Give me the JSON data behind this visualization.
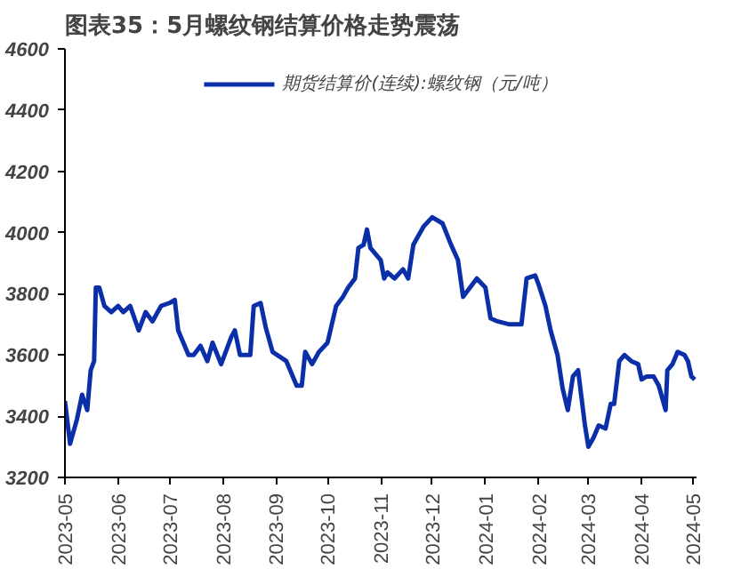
{
  "chart_data": {
    "type": "line",
    "title": "图表35：5月螺纹钢结算价格走势震荡",
    "series": [
      {
        "name": "期货结算价(连续):螺纹钢（元/吨）",
        "color": "#0a2fa8",
        "x": [
          "2023-05-01",
          "2023-05-04",
          "2023-05-08",
          "2023-05-11",
          "2023-05-14",
          "2023-05-16",
          "2023-05-18",
          "2023-05-19",
          "2023-05-21",
          "2023-05-24",
          "2023-05-28",
          "2023-06-01",
          "2023-06-04",
          "2023-06-08",
          "2023-06-13",
          "2023-06-17",
          "2023-06-21",
          "2023-06-26",
          "2023-07-01",
          "2023-07-04",
          "2023-07-06",
          "2023-07-12",
          "2023-07-15",
          "2023-07-19",
          "2023-07-23",
          "2023-07-26",
          "2023-07-31",
          "2023-08-06",
          "2023-08-08",
          "2023-08-11",
          "2023-08-17",
          "2023-08-19",
          "2023-08-23",
          "2023-08-26",
          "2023-08-30",
          "2023-09-07",
          "2023-09-13",
          "2023-09-16",
          "2023-09-18",
          "2023-09-22",
          "2023-09-26",
          "2023-10-01",
          "2023-10-06",
          "2023-10-10",
          "2023-10-13",
          "2023-10-17",
          "2023-10-19",
          "2023-10-22",
          "2023-10-24",
          "2023-10-26",
          "2023-11-01",
          "2023-11-03",
          "2023-11-05",
          "2023-11-09",
          "2023-11-14",
          "2023-11-17",
          "2023-11-20",
          "2023-11-26",
          "2023-12-01",
          "2023-12-07",
          "2023-12-12",
          "2023-12-16",
          "2023-12-19",
          "2023-12-23",
          "2023-12-27",
          "2024-01-01",
          "2024-01-04",
          "2024-01-08",
          "2024-01-15",
          "2024-01-22",
          "2024-01-25",
          "2024-01-30",
          "2024-02-01",
          "2024-02-05",
          "2024-02-08",
          "2024-02-12",
          "2024-02-15",
          "2024-02-18",
          "2024-02-21",
          "2024-02-24",
          "2024-02-28",
          "2024-03-01",
          "2024-03-04",
          "2024-03-07",
          "2024-03-11",
          "2024-03-14",
          "2024-03-16",
          "2024-03-19",
          "2024-03-22",
          "2024-03-26",
          "2024-03-30",
          "2024-04-01",
          "2024-04-04",
          "2024-04-08",
          "2024-04-11",
          "2024-04-15",
          "2024-04-16",
          "2024-04-19",
          "2024-04-22",
          "2024-04-26",
          "2024-04-28",
          "2024-04-30",
          "2024-05-02"
        ],
        "values": [
          3450,
          3310,
          3390,
          3470,
          3420,
          3550,
          3580,
          3820,
          3820,
          3760,
          3740,
          3760,
          3740,
          3760,
          3680,
          3740,
          3710,
          3760,
          3770,
          3780,
          3680,
          3600,
          3600,
          3630,
          3580,
          3640,
          3570,
          3660,
          3680,
          3600,
          3600,
          3760,
          3770,
          3690,
          3610,
          3580,
          3500,
          3500,
          3610,
          3570,
          3610,
          3640,
          3760,
          3790,
          3820,
          3850,
          3950,
          3960,
          4010,
          3950,
          3910,
          3850,
          3870,
          3850,
          3880,
          3850,
          3960,
          4020,
          4050,
          4030,
          3960,
          3910,
          3790,
          3820,
          3850,
          3820,
          3720,
          3710,
          3700,
          3700,
          3850,
          3860,
          3830,
          3760,
          3680,
          3600,
          3490,
          3420,
          3530,
          3550,
          3370,
          3300,
          3330,
          3370,
          3360,
          3440,
          3440,
          3580,
          3600,
          3580,
          3570,
          3520,
          3530,
          3530,
          3500,
          3420,
          3550,
          3570,
          3610,
          3600,
          3580,
          3530,
          3520
        ]
      }
    ],
    "xlim": [
      "2023-05-01",
      "2024-05-03"
    ],
    "xticks": [
      "2023-05",
      "2023-06",
      "2023-07",
      "2023-08",
      "2023-09",
      "2023-10",
      "2023-11",
      "2023-12",
      "2024-01",
      "2024-02",
      "2024-03",
      "2024-04",
      "2024-05"
    ],
    "ylim": [
      3200,
      4600
    ],
    "yticks": [
      3200,
      3400,
      3600,
      3800,
      4000,
      4200,
      4400,
      4600
    ],
    "grid": false,
    "legend": "top",
    "marker": "none",
    "line_style": "solid"
  }
}
